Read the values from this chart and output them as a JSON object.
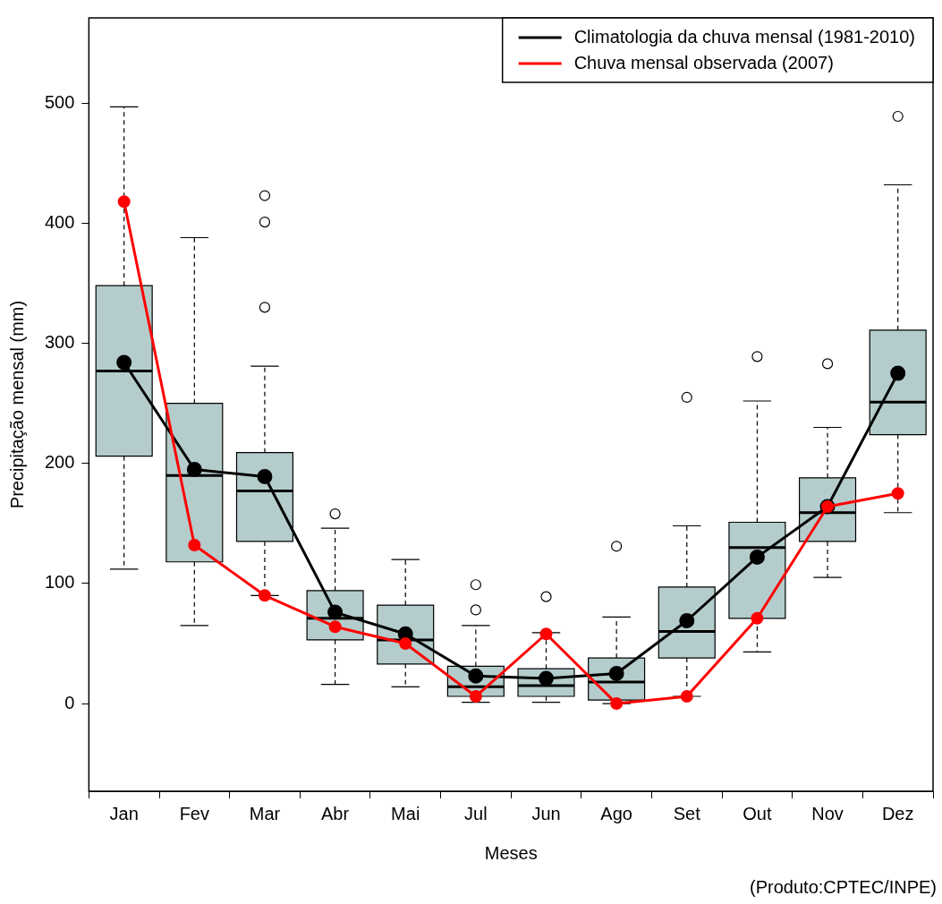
{
  "chart_data": {
    "type": "box",
    "xlabel": "Meses",
    "ylabel": "Precipitação mensal (mm)",
    "categories": [
      "Jan",
      "Fev",
      "Mar",
      "Abr",
      "Mai",
      "Jul",
      "Jun",
      "Ago",
      "Set",
      "Out",
      "Nov",
      "Dez"
    ],
    "ylim": [
      -73,
      571
    ],
    "yticks": [
      0,
      100,
      200,
      300,
      400,
      500
    ],
    "grid": false,
    "legend": "top right",
    "marker": "circle",
    "annotations": [
      "(Produto:CPTEC/INPE)"
    ],
    "series": [
      {
        "type": "box",
        "color": "#b4cccc",
        "boxes": [
          {
            "low": 112,
            "q1": 206,
            "median": 277,
            "q3": 348,
            "high": 497
          },
          {
            "low": 65,
            "q1": 118,
            "median": 190,
            "q3": 250,
            "high": 388
          },
          {
            "low": 90,
            "q1": 135,
            "median": 177,
            "q3": 209,
            "high": 281,
            "outliers": [
              330,
              401,
              423
            ]
          },
          {
            "low": 16,
            "q1": 53,
            "median": 71,
            "q3": 94,
            "high": 146,
            "outliers": [
              158
            ]
          },
          {
            "low": 14,
            "q1": 33,
            "median": 53,
            "q3": 82,
            "high": 120
          },
          {
            "low": 1,
            "q1": 6,
            "median": 14,
            "q3": 31,
            "high": 65,
            "outliers": [
              78,
              99
            ]
          },
          {
            "low": 1,
            "q1": 6,
            "median": 15,
            "q3": 29,
            "high": 59,
            "outliers": [
              89
            ]
          },
          {
            "low": 0,
            "q1": 3,
            "median": 18,
            "q3": 38,
            "high": 72,
            "outliers": [
              131
            ]
          },
          {
            "low": 6,
            "q1": 38,
            "median": 60,
            "q3": 97,
            "high": 148,
            "outliers": [
              255
            ]
          },
          {
            "low": 43,
            "q1": 71,
            "median": 130,
            "q3": 151,
            "high": 252,
            "outliers": [
              289
            ]
          },
          {
            "low": 105,
            "q1": 135,
            "median": 159,
            "q3": 188,
            "high": 230,
            "outliers": [
              283
            ]
          },
          {
            "low": 159,
            "q1": 224,
            "median": 251,
            "q3": 311,
            "high": 432,
            "outliers": [
              489
            ]
          }
        ]
      },
      {
        "type": "line",
        "name": "Climatologia da chuva mensal (1981-2010)",
        "color": "#000000",
        "values": [
          284,
          195,
          189,
          76,
          58,
          23,
          21,
          25,
          69,
          122,
          164,
          275
        ]
      },
      {
        "type": "line",
        "name": "Chuva mensal observada (2007)",
        "color": "#ff0000",
        "values": [
          418,
          132,
          90,
          64,
          50,
          6,
          58,
          0,
          6,
          71,
          164,
          175
        ]
      }
    ]
  }
}
